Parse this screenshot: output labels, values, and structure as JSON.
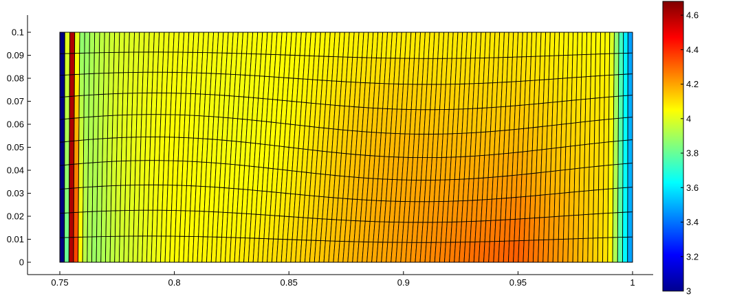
{
  "chart_data": {
    "type": "heatmap",
    "title": "",
    "xlabel": "",
    "ylabel": "",
    "xlim": [
      0.75,
      1.0
    ],
    "ylim": [
      0,
      0.1
    ],
    "x_ticks": [
      "0.75",
      "0.8",
      "0.85",
      "0.9",
      "0.95",
      "1"
    ],
    "y_ticks": [
      "0",
      "0.01",
      "0.02",
      "0.03",
      "0.04",
      "0.05",
      "0.06",
      "0.07",
      "0.08",
      "0.09",
      "0.1"
    ],
    "colormap": "jet",
    "colorbar": {
      "range": [
        3.0,
        4.68
      ],
      "ticks": [
        "3",
        "3.2",
        "3.4",
        "3.6",
        "3.8",
        "4",
        "4.2",
        "4.4",
        "4.6"
      ]
    },
    "mesh": {
      "columns": 120,
      "rows": 10,
      "edge_color": "#000000"
    },
    "field_profile": {
      "x": [
        0.75,
        0.752,
        0.754,
        0.756,
        0.7575,
        0.76,
        0.765,
        0.775,
        0.8,
        0.85,
        0.9,
        0.93,
        0.95,
        0.97,
        0.99,
        0.997,
        1.0
      ],
      "value_bottom": [
        3.0,
        3.0,
        4.6,
        4.6,
        4.25,
        3.95,
        3.88,
        3.95,
        4.05,
        4.12,
        4.22,
        4.3,
        4.33,
        4.22,
        4.08,
        3.6,
        3.4
      ],
      "value_top": [
        3.0,
        3.0,
        4.6,
        4.6,
        4.0,
        3.85,
        3.92,
        3.98,
        4.03,
        4.05,
        4.07,
        4.08,
        4.08,
        4.06,
        4.05,
        3.6,
        3.4
      ]
    }
  }
}
